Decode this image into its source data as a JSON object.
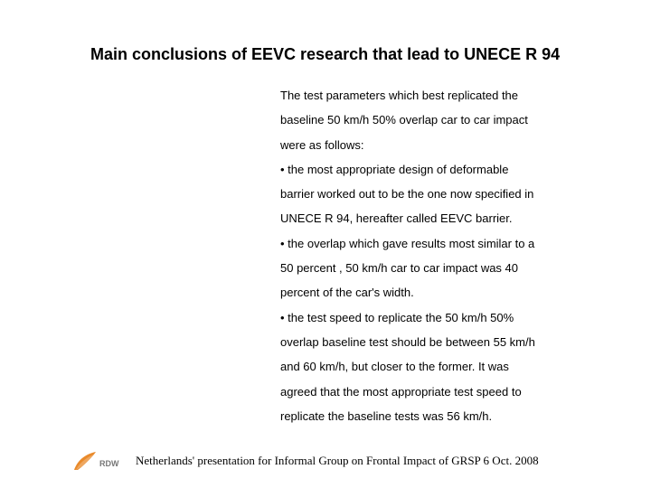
{
  "title": "Main conclusions of EEVC research that lead to UNECE R 94",
  "body_lines": [
    "The test parameters which best replicated the",
    "baseline 50 km/h 50% overlap car to car impact",
    "were as follows:",
    "• the most appropriate design of deformable",
    "barrier worked out to be the one now specified in",
    "UNECE R 94, hereafter called EEVC barrier.",
    "• the overlap which gave results most similar to a",
    "50 percent , 50 km/h car to car impact was 40",
    "percent of the car's width.",
    "• the test speed to replicate the 50 km/h 50%",
    "overlap baseline test should be between 55 km/h",
    "and 60 km/h, but closer to the former. It was",
    "agreed that the most appropriate test speed to",
    "replicate the baseline tests was 56 km/h."
  ],
  "footer": "Netherlands' presentation for Informal Group on Frontal Impact of GRSP 6 Oct. 2008",
  "logo": {
    "feather_color": "#e98a2b",
    "text": "RDW",
    "text_color": "#777777"
  }
}
